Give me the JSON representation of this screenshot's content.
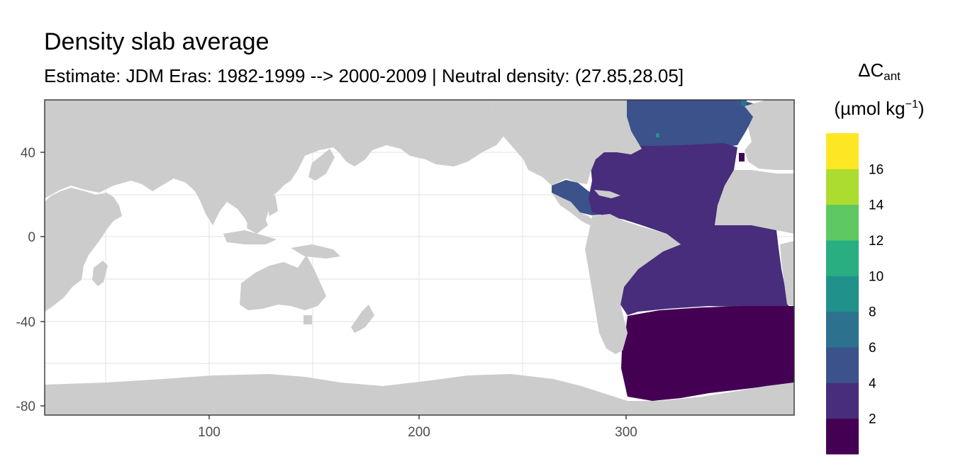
{
  "title": "Density slab average",
  "subtitle": "Estimate: JDM Eras: 1982-1999 --> 2000-2009 | Neutral density: (27.85,28.05]",
  "axes": {
    "x_ticks": [
      "100",
      "200",
      "300"
    ],
    "y_ticks": [
      "40",
      "0",
      "-40",
      "-80"
    ]
  },
  "legend": {
    "title_line1_main": "ΔC",
    "title_line1_sub": "ant",
    "title_line2_pre": "(µmol kg",
    "title_line2_sup": "−1",
    "title_line2_post": ")",
    "labels": [
      "2",
      "4",
      "6",
      "8",
      "10",
      "12",
      "14",
      "16"
    ],
    "colors": [
      "#440154",
      "#472d7b",
      "#3b528b",
      "#2c728e",
      "#21918c",
      "#28ae80",
      "#5ec962",
      "#addc30",
      "#fde725"
    ]
  },
  "colors": {
    "land": "#cccccc",
    "ocean_no_data": "#ffffff",
    "grid": "#ebebeb",
    "southern_band": "#440154",
    "atlantic_main": "#472d7b",
    "north_atlantic": "#3b528b"
  }
}
